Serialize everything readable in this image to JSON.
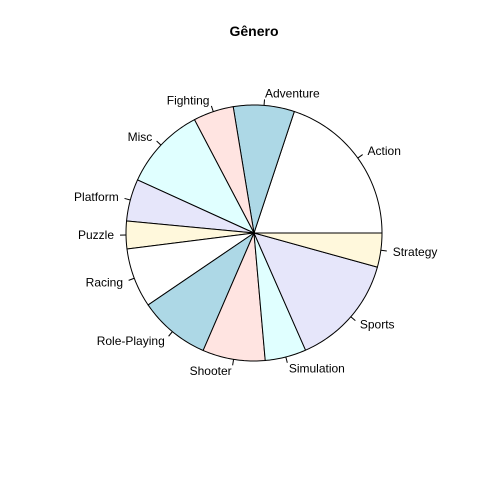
{
  "chart_data": {
    "type": "pie",
    "title": "Gênero",
    "start_angle_deg": 0,
    "direction": "counterclockwise",
    "labels": [
      "Action",
      "Adventure",
      "Fighting",
      "Misc",
      "Platform",
      "Puzzle",
      "Racing",
      "Role-Playing",
      "Shooter",
      "Simulation",
      "Sports",
      "Strategy"
    ],
    "values": [
      19.9,
      7.7,
      5.1,
      10.5,
      5.3,
      3.5,
      7.5,
      9.0,
      7.9,
      5.2,
      14.1,
      4.3
    ],
    "colors": [
      "#FFFFFF",
      "#ADD8E6",
      "#FFE4E1",
      "#E0FFFF",
      "#E6E6FA",
      "#FFF8DC",
      "#FFFFFF",
      "#ADD8E6",
      "#FFE4E1",
      "#E0FFFF",
      "#E6E6FA",
      "#FFF8DC"
    ],
    "legend": "none"
  }
}
